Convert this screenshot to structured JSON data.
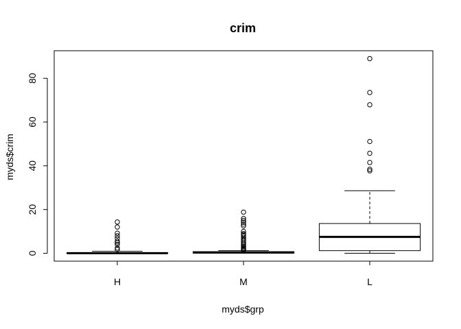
{
  "chart_data": {
    "type": "boxplot",
    "title": "crim",
    "xlabel": "myds$grp",
    "ylabel": "myds$crim",
    "categories": [
      "H",
      "M",
      "L"
    ],
    "ylim": [
      -3.6,
      92.6
    ],
    "yticks": [
      0,
      20,
      40,
      60,
      80
    ],
    "grid": false,
    "boxes": [
      {
        "name": "H",
        "whisker_low": 0.0,
        "q1": 0.03,
        "median": 0.06,
        "q3": 0.25,
        "whisker_high": 0.9,
        "outliers": [
          14.3,
          12.0,
          9.2,
          8.0,
          6.8,
          5.5,
          4.8,
          4.0,
          2.4,
          1.7
        ]
      },
      {
        "name": "M",
        "whisker_low": 0.0,
        "q1": 0.1,
        "median": 0.3,
        "q3": 0.75,
        "whisker_high": 1.2,
        "outliers": [
          18.8,
          15.9,
          15.0,
          14.2,
          13.3,
          12.5,
          10.0,
          9.0,
          8.5,
          7.8,
          7.0,
          6.3,
          5.7,
          5.0,
          4.4,
          3.8,
          3.2,
          2.7,
          2.2,
          1.8,
          1.5
        ]
      },
      {
        "name": "L",
        "whisker_low": 0.0,
        "q1": 1.2,
        "median": 7.5,
        "q3": 13.6,
        "whisker_high": 28.6,
        "outliers": [
          89.0,
          73.5,
          67.9,
          51.1,
          45.7,
          41.5,
          38.4,
          37.7
        ]
      }
    ]
  }
}
